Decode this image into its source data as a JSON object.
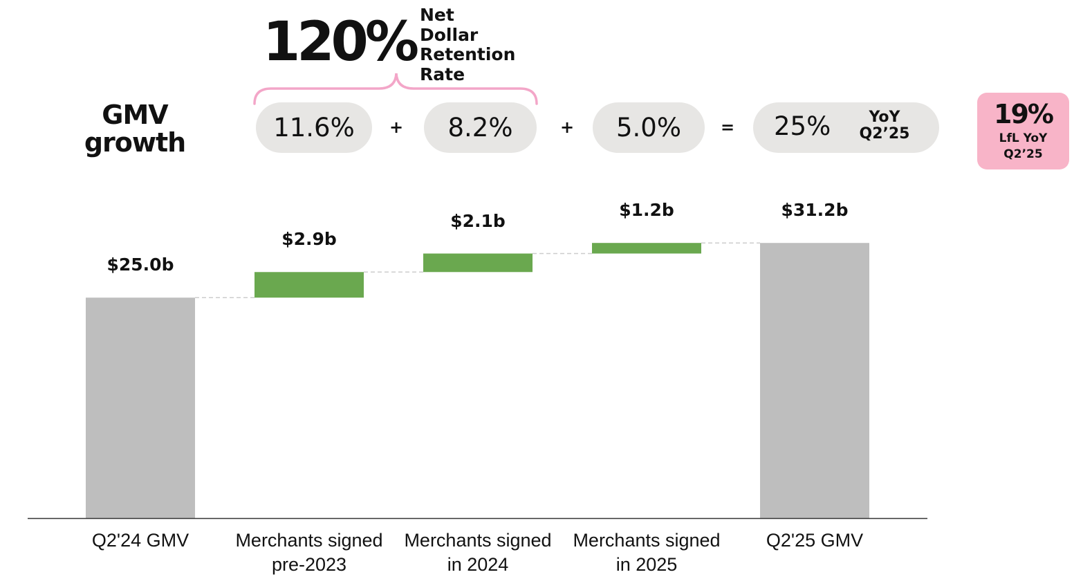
{
  "header": {
    "gmv_growth_line1": "GMV",
    "gmv_growth_line2": "growth",
    "ndr_value": "120%",
    "ndr_label_lines": [
      "Net",
      "Dollar",
      "Retention",
      "Rate"
    ],
    "ndr_color": "#f3a6c8",
    "pills": [
      {
        "value": "11.6%"
      },
      {
        "value": "8.2%"
      },
      {
        "value": "5.0%"
      },
      {
        "value": "25%",
        "suffix_line1": "YoY",
        "suffix_line2": "Q2’25"
      }
    ],
    "operators": [
      "+",
      "+",
      "="
    ],
    "lfl": {
      "value": "19%",
      "line1": "LfL YoY",
      "line2": "Q2’25",
      "bg_color": "#f8b4c8"
    }
  },
  "chart_data": {
    "type": "waterfall",
    "title": "GMV growth",
    "categories": [
      "Q2'24 GMV",
      "Merchants signed pre-2023",
      "Merchants signed in 2024",
      "Merchants signed in 2025",
      "Q2'25 GMV"
    ],
    "category_lines": [
      [
        "Q2'24 GMV"
      ],
      [
        "Merchants signed",
        "pre-2023"
      ],
      [
        "Merchants signed",
        "in 2024"
      ],
      [
        "Merchants signed",
        "in 2025"
      ],
      [
        "Q2'25 GMV"
      ]
    ],
    "values": [
      25.0,
      2.9,
      2.1,
      1.2,
      31.2
    ],
    "value_labels": [
      "$25.0b",
      "$2.9b",
      "$2.1b",
      "$1.2b",
      "$31.2b"
    ],
    "kinds": [
      "total",
      "increase",
      "increase",
      "increase",
      "total"
    ],
    "unit": "$b",
    "total_color": "#bebebe",
    "increase_color": "#6aa84f",
    "connector_color": "#cccccc",
    "axis_color": "#333333"
  }
}
